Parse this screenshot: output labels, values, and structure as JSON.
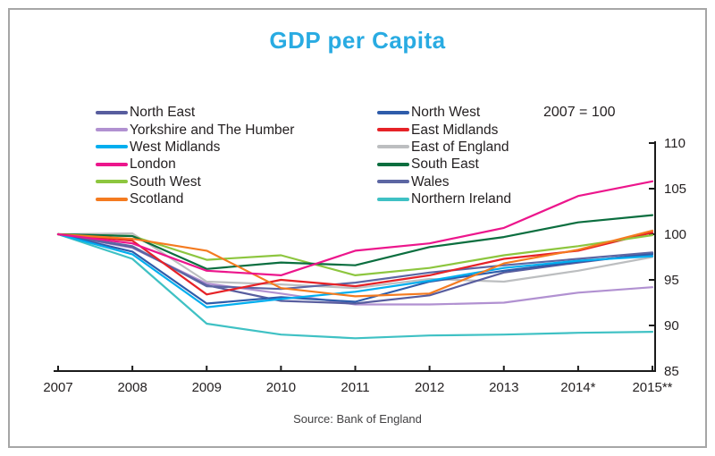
{
  "title": "GDP per Capita",
  "annotation": "2007 = 100",
  "source": "Source: Bank of England",
  "colors": {
    "title": "#29abe2",
    "axis": "#1a1a1a",
    "text": "#231f20",
    "frame_border": "#a6a6a6"
  },
  "chart_data": {
    "type": "line",
    "title": "GDP per Capita",
    "subtitle": "2007 = 100",
    "x": [
      2007,
      2008,
      2009,
      2010,
      2011,
      2012,
      2013,
      2014,
      2015
    ],
    "x_tick_labels": [
      "2007",
      "2008",
      "2009",
      "2010",
      "2011",
      "2012",
      "2013",
      "2014*",
      "2015**"
    ],
    "y_ticks": [
      85,
      90,
      95,
      100,
      105,
      110
    ],
    "ylim": [
      85,
      110
    ],
    "grid": false,
    "legend_position": "top-two-columns",
    "y_axis_side": "right",
    "series": [
      {
        "name": "North East",
        "color": "#585d9e",
        "values": [
          100,
          98.6,
          94.4,
          92.7,
          92.4,
          93.3,
          95.8,
          96.9,
          97.9
        ]
      },
      {
        "name": "Yorkshire and The Humber",
        "color": "#b191d1",
        "values": [
          100,
          98.5,
          94.6,
          93.5,
          92.3,
          92.3,
          92.5,
          93.6,
          94.2
        ]
      },
      {
        "name": "West Midlands",
        "color": "#00aeef",
        "values": [
          100,
          97.8,
          92.0,
          92.9,
          93.7,
          94.9,
          96.3,
          97.1,
          97.6
        ]
      },
      {
        "name": "London",
        "color": "#ec168c",
        "values": [
          100,
          99.0,
          96.0,
          95.5,
          98.2,
          99.0,
          100.7,
          104.2,
          105.8
        ]
      },
      {
        "name": "South West",
        "color": "#8dc63f",
        "values": [
          100,
          99.8,
          97.2,
          97.7,
          95.5,
          96.3,
          97.7,
          98.7,
          99.9
        ]
      },
      {
        "name": "Scotland",
        "color": "#f47b20",
        "values": [
          100,
          99.5,
          98.2,
          94.1,
          93.2,
          93.5,
          96.8,
          98.3,
          100.4
        ]
      },
      {
        "name": "North West",
        "color": "#2e5caa",
        "values": [
          100,
          98.1,
          92.4,
          93.1,
          92.6,
          94.8,
          96.0,
          97.0,
          97.8
        ]
      },
      {
        "name": "East Midlands",
        "color": "#e62227",
        "values": [
          100,
          99.3,
          93.4,
          95.0,
          94.3,
          95.5,
          97.3,
          98.2,
          100.2
        ]
      },
      {
        "name": "East of England",
        "color": "#bcbec0",
        "values": [
          100,
          100.1,
          94.8,
          94.5,
          94.1,
          95.1,
          94.8,
          96.0,
          97.5
        ]
      },
      {
        "name": "South East",
        "color": "#0b6e3f",
        "values": [
          100,
          99.8,
          96.2,
          96.9,
          96.6,
          98.6,
          99.7,
          101.3,
          102.1
        ]
      },
      {
        "name": "Wales",
        "color": "#5c66a3",
        "values": [
          100,
          98.7,
          94.3,
          94.0,
          94.7,
          95.8,
          96.6,
          97.3,
          98.0
        ]
      },
      {
        "name": "Northern Ireland",
        "color": "#3fc1c4",
        "values": [
          100,
          97.3,
          90.2,
          89.0,
          88.6,
          88.9,
          89.0,
          89.2,
          89.3
        ]
      }
    ],
    "legend_left_column": [
      "North East",
      "Yorkshire and The Humber",
      "West Midlands",
      "London",
      "South West",
      "Scotland"
    ],
    "legend_right_column": [
      "North West",
      "East Midlands",
      "East of England",
      "South East",
      "Wales",
      "Northern Ireland"
    ]
  }
}
